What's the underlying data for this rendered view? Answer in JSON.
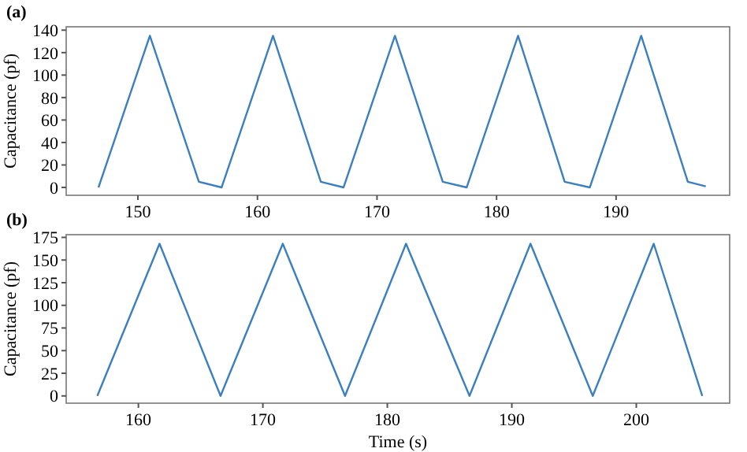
{
  "chart_data": [
    {
      "type": "line",
      "title": "(a)",
      "ylabel": "Capacitance (pf)",
      "xlim": [
        144,
        199.5
      ],
      "xticks": [
        150,
        160,
        170,
        180,
        190
      ],
      "ylim": [
        -7,
        143
      ],
      "yticks": [
        0,
        20,
        40,
        60,
        80,
        100,
        120,
        140
      ],
      "grid": false,
      "x": [
        146.7,
        151.0,
        155.1,
        157.0,
        161.3,
        165.3,
        167.2,
        171.5,
        175.5,
        177.5,
        181.8,
        185.7,
        187.8,
        192.1,
        196.0,
        197.5
      ],
      "series": [
        {
          "color": "#3b7fc0",
          "values": [
            0,
            135,
            5,
            0,
            135,
            5,
            0,
            135,
            5,
            0,
            135,
            5,
            0,
            135,
            5,
            1
          ]
        }
      ]
    },
    {
      "type": "line",
      "title": "(b)",
      "xlabel": "Time (s)",
      "ylabel": "Capacitance (pf)",
      "xlim": [
        154.2,
        207.5
      ],
      "xticks": [
        160,
        170,
        180,
        190,
        200
      ],
      "ylim": [
        -8,
        178
      ],
      "yticks": [
        0,
        25,
        50,
        75,
        100,
        125,
        150,
        175
      ],
      "grid": false,
      "x": [
        156.7,
        161.7,
        166.6,
        171.6,
        176.6,
        181.5,
        186.6,
        191.5,
        196.5,
        201.4,
        205.3
      ],
      "series": [
        {
          "color": "#3b7fc0",
          "values": [
            0,
            168,
            0,
            168,
            0,
            168,
            0,
            168,
            0,
            168,
            0
          ]
        }
      ]
    }
  ]
}
